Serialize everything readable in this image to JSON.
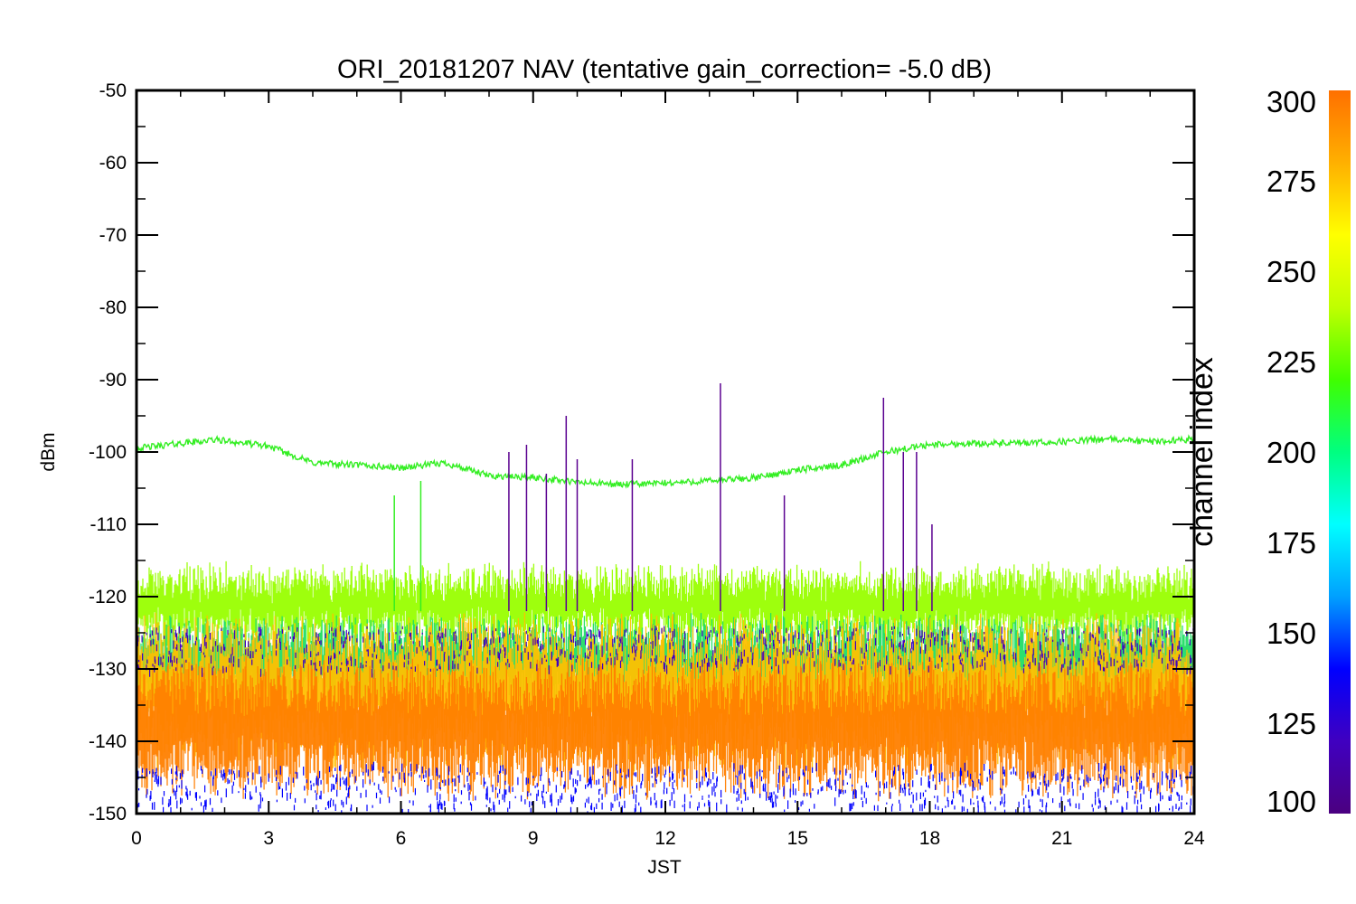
{
  "chart_data": {
    "type": "line",
    "title": "ORI_20181207 NAV (tentative gain_correction= -5.0 dB)",
    "xlabel": "JST",
    "ylabel": "dBm",
    "xlim": [
      0,
      24
    ],
    "ylim": [
      -150,
      -50
    ],
    "xticks": [
      "0",
      "3",
      "6",
      "9",
      "12",
      "15",
      "18",
      "21",
      "24"
    ],
    "yticks": [
      "-50",
      "-60",
      "-70",
      "-80",
      "-90",
      "-100",
      "-110",
      "-120",
      "-130",
      "-140",
      "-150"
    ],
    "colorbar": {
      "label": "channel index",
      "range": [
        100,
        300
      ],
      "ticks": [
        "300",
        "275",
        "250",
        "225",
        "200",
        "175",
        "150",
        "125",
        "100"
      ],
      "colors": [
        "#4b0080",
        "#4000c0",
        "#0000ff",
        "#00a0ff",
        "#00ffff",
        "#00ff80",
        "#40ff00",
        "#c0ff00",
        "#ffff00",
        "#ffb000",
        "#ff7000"
      ]
    },
    "series": [
      {
        "channel": 240,
        "color": "#33ee22",
        "x": [
          0,
          1,
          1.8,
          3,
          4,
          5,
          6,
          7,
          8,
          9,
          10,
          11,
          12,
          13,
          14,
          15,
          16,
          17,
          18,
          19,
          20,
          21,
          22,
          23,
          24
        ],
        "y": [
          -99.5,
          -98.8,
          -98.3,
          -99.2,
          -101.5,
          -101.8,
          -102.2,
          -101.5,
          -103.3,
          -103.5,
          -104.2,
          -104.5,
          -104.3,
          -104.0,
          -103.6,
          -102.5,
          -101.8,
          -100.0,
          -99.0,
          -98.8,
          -98.8,
          -98.6,
          -98.2,
          -98.6,
          -98.2
        ]
      },
      {
        "channel": 265,
        "color": "#99ff00",
        "band": [
          -125,
          -117
        ],
        "x": [
          0,
          24
        ],
        "y": [
          -121,
          -121
        ]
      },
      {
        "channel": 215,
        "color": "#22dd66",
        "band": [
          -134,
          -124
        ],
        "x": [
          0,
          24
        ],
        "y": [
          -128,
          -128
        ]
      },
      {
        "channel": 285,
        "color": "#ffc000",
        "band": [
          -142,
          -124
        ],
        "x": [
          0,
          24
        ],
        "y": [
          -132,
          -132
        ]
      },
      {
        "channel": 295,
        "color": "#ff8000",
        "band": [
          -146,
          -130
        ],
        "x": [
          0,
          24
        ],
        "y": [
          -137,
          -137
        ]
      }
    ],
    "spikes": [
      {
        "x": 5.85,
        "y": -106,
        "color": "#33ee22"
      },
      {
        "x": 6.45,
        "y": -104,
        "color": "#33ee22"
      },
      {
        "x": 8.45,
        "y": -100,
        "color": "#5a0090"
      },
      {
        "x": 8.85,
        "y": -99,
        "color": "#5a0090"
      },
      {
        "x": 9.3,
        "y": -103,
        "color": "#5a0090"
      },
      {
        "x": 9.75,
        "y": -95,
        "color": "#5a0090"
      },
      {
        "x": 10.0,
        "y": -101,
        "color": "#5a0090"
      },
      {
        "x": 11.25,
        "y": -101,
        "color": "#5a0090"
      },
      {
        "x": 13.25,
        "y": -90.5,
        "color": "#5a0090"
      },
      {
        "x": 14.7,
        "y": -106,
        "color": "#5a0090"
      },
      {
        "x": 16.95,
        "y": -92.5,
        "color": "#5a0090"
      },
      {
        "x": 17.4,
        "y": -100,
        "color": "#5a0090"
      },
      {
        "x": 17.7,
        "y": -100,
        "color": "#5a0090"
      },
      {
        "x": 18.05,
        "y": -110,
        "color": "#5a0090"
      }
    ]
  }
}
